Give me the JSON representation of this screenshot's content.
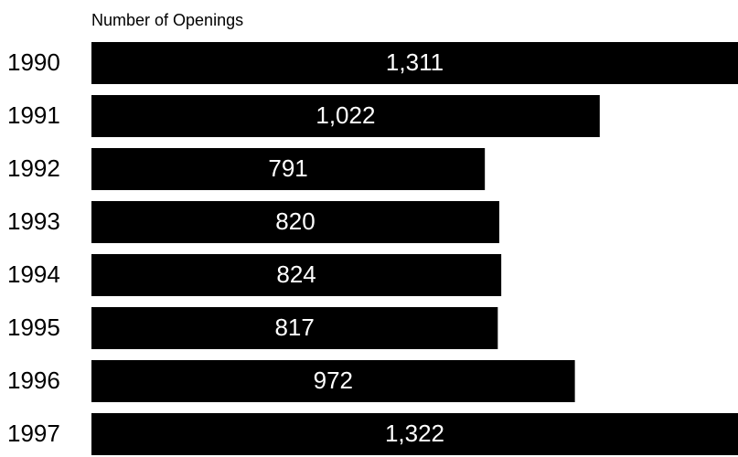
{
  "chart_data": {
    "type": "bar",
    "orientation": "horizontal",
    "title": "Number of Openings",
    "categories": [
      "1990",
      "1991",
      "1992",
      "1993",
      "1994",
      "1995",
      "1996",
      "1997"
    ],
    "values": [
      1311,
      1022,
      791,
      820,
      824,
      817,
      972,
      1322
    ],
    "value_labels": [
      "1,311",
      "1,022",
      "791",
      "820",
      "824",
      "817",
      "972",
      "1,322"
    ],
    "color": "#000000",
    "label_color": "#ffffff",
    "xlim": [
      0,
      1300
    ]
  }
}
